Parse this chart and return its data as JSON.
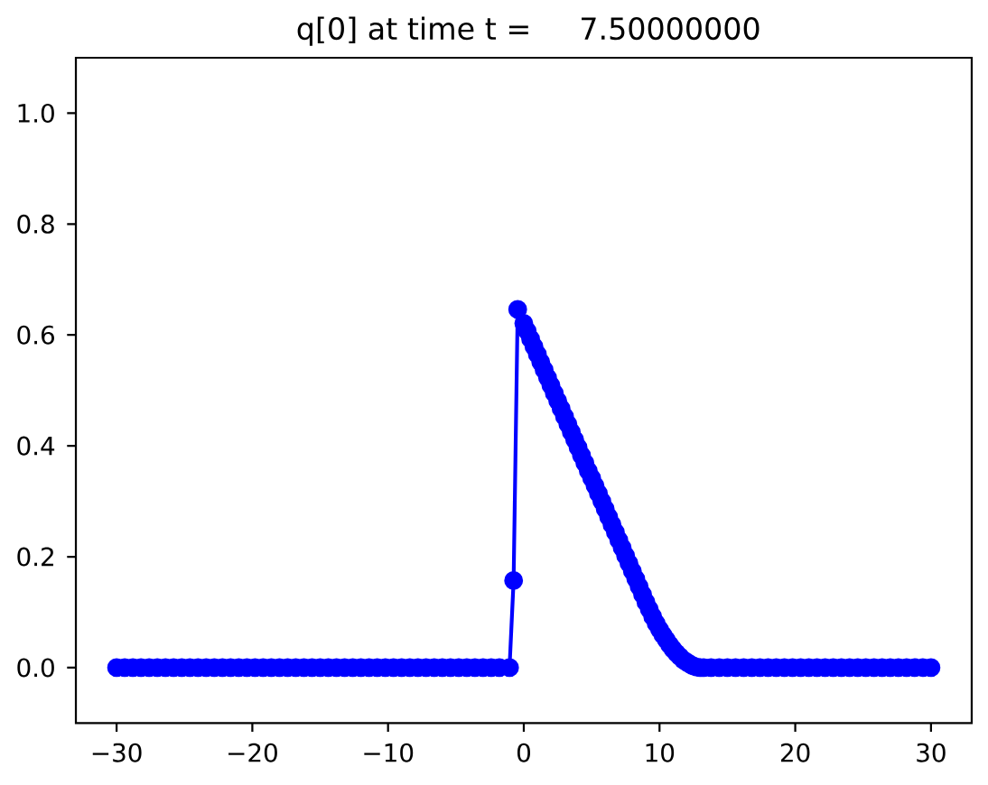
{
  "chart_data": {
    "type": "line",
    "title": "q[0] at time t =     7.50000000",
    "x": [
      -30,
      -29.4,
      -28.8,
      -28.2,
      -27.6,
      -27,
      -26.4,
      -25.8,
      -25.2,
      -24.6,
      -24,
      -23.4,
      -22.8,
      -22.2,
      -21.6,
      -21,
      -20.4,
      -19.8,
      -19.2,
      -18.6,
      -18,
      -17.4,
      -16.8,
      -16.2,
      -15.6,
      -15,
      -14.4,
      -13.8,
      -13.2,
      -12.6,
      -12,
      -11.4,
      -10.8,
      -10.2,
      -9.6,
      -9,
      -8.4,
      -7.8,
      -7.2,
      -6.6,
      -6,
      -5.4,
      -4.8,
      -4.2,
      -3.6,
      -3,
      -2.4,
      -1.8,
      -1.05,
      -0.75,
      -0.45,
      0,
      0.25,
      0.5,
      0.75,
      1,
      1.25,
      1.5,
      1.75,
      2,
      2.25,
      2.5,
      2.75,
      3,
      3.25,
      3.5,
      3.75,
      4,
      4.25,
      4.5,
      4.75,
      5,
      5.25,
      5.5,
      5.75,
      6,
      6.25,
      6.5,
      6.75,
      7,
      7.25,
      7.5,
      7.75,
      8,
      8.25,
      8.5,
      8.75,
      9,
      9.25,
      9.5,
      9.75,
      10,
      10.25,
      10.5,
      10.75,
      11,
      11.25,
      11.5,
      11.75,
      12,
      12.25,
      12.5,
      12.75,
      13,
      13.25,
      13.8,
      14.4,
      15,
      15.6,
      16.2,
      16.8,
      17.4,
      18,
      18.6,
      19.2,
      19.8,
      20.4,
      21,
      21.6,
      22.2,
      22.8,
      23.4,
      24,
      24.6,
      25.2,
      25.8,
      26.4,
      27,
      27.6,
      28.2,
      28.8,
      29.4,
      30
    ],
    "values": [
      0,
      0,
      0,
      0,
      0,
      0,
      0,
      0,
      0,
      0,
      0,
      0,
      0,
      0,
      0,
      0,
      0,
      0,
      0,
      0,
      0,
      0,
      0,
      0,
      0,
      0,
      0,
      0,
      0,
      0,
      0,
      0,
      0,
      0,
      0,
      0,
      0,
      0,
      0,
      0,
      0,
      0,
      0,
      0,
      0,
      0,
      0,
      0,
      0,
      0.157,
      0.646,
      0.621,
      0.607,
      0.593,
      0.579,
      0.565,
      0.551,
      0.537,
      0.523,
      0.509,
      0.495,
      0.481,
      0.467,
      0.453,
      0.439,
      0.425,
      0.411,
      0.397,
      0.383,
      0.369,
      0.355,
      0.342,
      0.328,
      0.314,
      0.3,
      0.286,
      0.272,
      0.258,
      0.244,
      0.23,
      0.216,
      0.202,
      0.188,
      0.174,
      0.16,
      0.146,
      0.132,
      0.118,
      0.105,
      0.092,
      0.08,
      0.069,
      0.059,
      0.05,
      0.041,
      0.033,
      0.026,
      0.02,
      0.014,
      0.01,
      0.006,
      0.003,
      0.001,
      0,
      0,
      0,
      0,
      0,
      0,
      0,
      0,
      0,
      0,
      0,
      0,
      0,
      0,
      0,
      0,
      0,
      0,
      0,
      0,
      0,
      0,
      0,
      0,
      0,
      0,
      0,
      0,
      0,
      0
    ],
    "color": "#0000ff",
    "marker": "circle",
    "line_style": "solid",
    "xlim": [
      -33,
      33
    ],
    "ylim": [
      -0.1,
      1.1
    ],
    "xticks": [
      {
        "value": -30,
        "label": "−30"
      },
      {
        "value": -20,
        "label": "−20"
      },
      {
        "value": -10,
        "label": "−10"
      },
      0,
      10,
      20,
      30
    ],
    "yticks": [
      {
        "value": 0,
        "label": "0.0"
      },
      0.2,
      0.4,
      0.6,
      0.8,
      {
        "value": 1,
        "label": "1.0"
      }
    ]
  }
}
